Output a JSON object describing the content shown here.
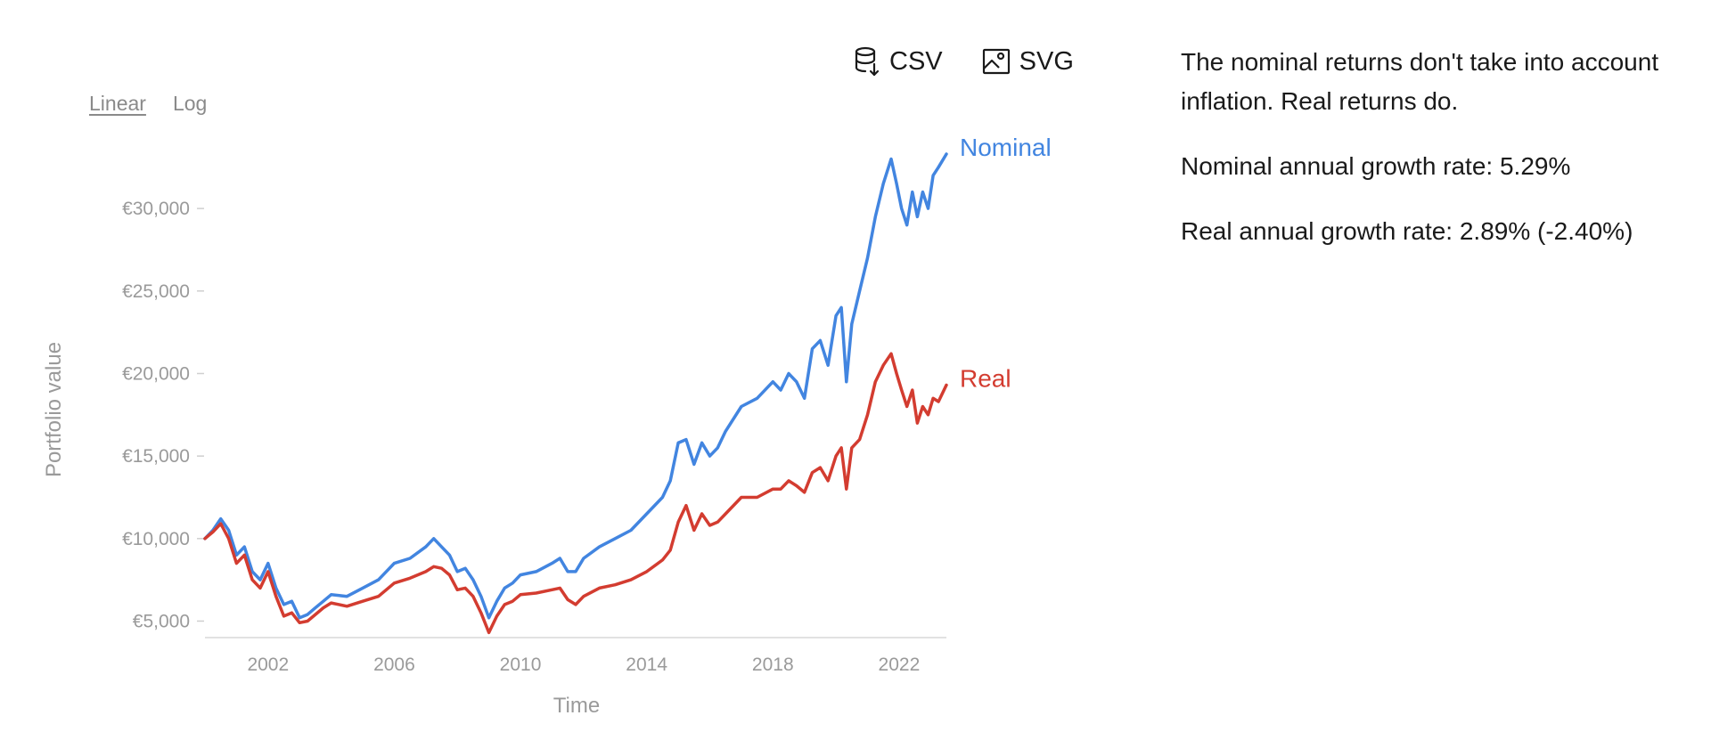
{
  "scale_toggle": {
    "linear_label": "Linear",
    "log_label": "Log",
    "active": "Linear"
  },
  "downloads": {
    "csv_label": "CSV",
    "svg_label": "SVG",
    "csv_icon": "database-download-icon",
    "svg_icon": "image-icon"
  },
  "info": {
    "description": "The nominal returns don't take into account inflation. Real returns do.",
    "nominal_rate": "Nominal annual growth rate: 5.29%",
    "real_rate": "Real annual growth rate: 2.89% (-2.40%)"
  },
  "chart_data": {
    "type": "line",
    "title": "",
    "xlabel": "Time",
    "ylabel": "Portfolio value",
    "xlim": [
      2000.0,
      2023.5
    ],
    "ylim": [
      4000,
      34000
    ],
    "x_ticks": [
      2002,
      2006,
      2010,
      2014,
      2018,
      2022
    ],
    "y_ticks": [
      5000,
      10000,
      15000,
      20000,
      25000,
      30000
    ],
    "y_tick_labels": [
      "€5,000",
      "€10,000",
      "€15,000",
      "€20,000",
      "€25,000",
      "€30,000"
    ],
    "grid": false,
    "legend": "inline-right",
    "x": [
      2000.0,
      2000.25,
      2000.5,
      2000.75,
      2001.0,
      2001.25,
      2001.5,
      2001.75,
      2002.0,
      2002.25,
      2002.5,
      2002.75,
      2003.0,
      2003.25,
      2003.5,
      2003.75,
      2004.0,
      2004.5,
      2005.0,
      2005.5,
      2006.0,
      2006.5,
      2007.0,
      2007.25,
      2007.5,
      2007.75,
      2008.0,
      2008.25,
      2008.5,
      2008.75,
      2009.0,
      2009.25,
      2009.5,
      2009.75,
      2010.0,
      2010.5,
      2011.0,
      2011.25,
      2011.5,
      2011.75,
      2012.0,
      2012.5,
      2013.0,
      2013.5,
      2014.0,
      2014.5,
      2014.75,
      2015.0,
      2015.25,
      2015.5,
      2015.75,
      2016.0,
      2016.25,
      2016.5,
      2017.0,
      2017.5,
      2018.0,
      2018.25,
      2018.5,
      2018.75,
      2019.0,
      2019.25,
      2019.5,
      2019.75,
      2020.0,
      2020.17,
      2020.33,
      2020.5,
      2020.75,
      2021.0,
      2021.25,
      2021.5,
      2021.75,
      2021.92,
      2022.08,
      2022.25,
      2022.42,
      2022.58,
      2022.75,
      2022.92,
      2023.08,
      2023.25,
      2023.5
    ],
    "series": [
      {
        "name": "Nominal",
        "color": "#4285e0",
        "values": [
          10000,
          10500,
          11200,
          10500,
          9000,
          9500,
          8000,
          7500,
          8500,
          7000,
          6000,
          6200,
          5200,
          5400,
          5800,
          6200,
          6600,
          6500,
          7000,
          7500,
          8500,
          8800,
          9500,
          10000,
          9500,
          9000,
          8000,
          8200,
          7500,
          6500,
          5200,
          6200,
          7000,
          7300,
          7800,
          8000,
          8500,
          8800,
          8000,
          8000,
          8800,
          9500,
          10000,
          10500,
          11500,
          12500,
          13500,
          15800,
          16000,
          14500,
          15800,
          15000,
          15500,
          16500,
          18000,
          18500,
          19500,
          19000,
          20000,
          19500,
          18500,
          21500,
          22000,
          20500,
          23500,
          24000,
          19500,
          23000,
          25000,
          27000,
          29500,
          31500,
          33000,
          31500,
          30000,
          29000,
          31000,
          29500,
          31000,
          30000,
          32000,
          32500,
          33300
        ]
      },
      {
        "name": "Real",
        "color": "#d33c30",
        "values": [
          10000,
          10400,
          10900,
          10000,
          8500,
          9000,
          7500,
          7000,
          8000,
          6500,
          5300,
          5500,
          4900,
          5000,
          5400,
          5800,
          6100,
          5900,
          6200,
          6500,
          7300,
          7600,
          8000,
          8300,
          8200,
          7800,
          6900,
          7000,
          6500,
          5500,
          4300,
          5300,
          6000,
          6200,
          6600,
          6700,
          6900,
          7000,
          6300,
          6000,
          6500,
          7000,
          7200,
          7500,
          8000,
          8700,
          9300,
          11000,
          12000,
          10500,
          11500,
          10800,
          11000,
          11500,
          12500,
          12500,
          13000,
          13000,
          13500,
          13200,
          12800,
          14000,
          14300,
          13500,
          15000,
          15500,
          13000,
          15500,
          16000,
          17500,
          19500,
          20500,
          21200,
          20000,
          19000,
          18000,
          19000,
          17000,
          18000,
          17500,
          18500,
          18300,
          19300
        ]
      }
    ]
  }
}
